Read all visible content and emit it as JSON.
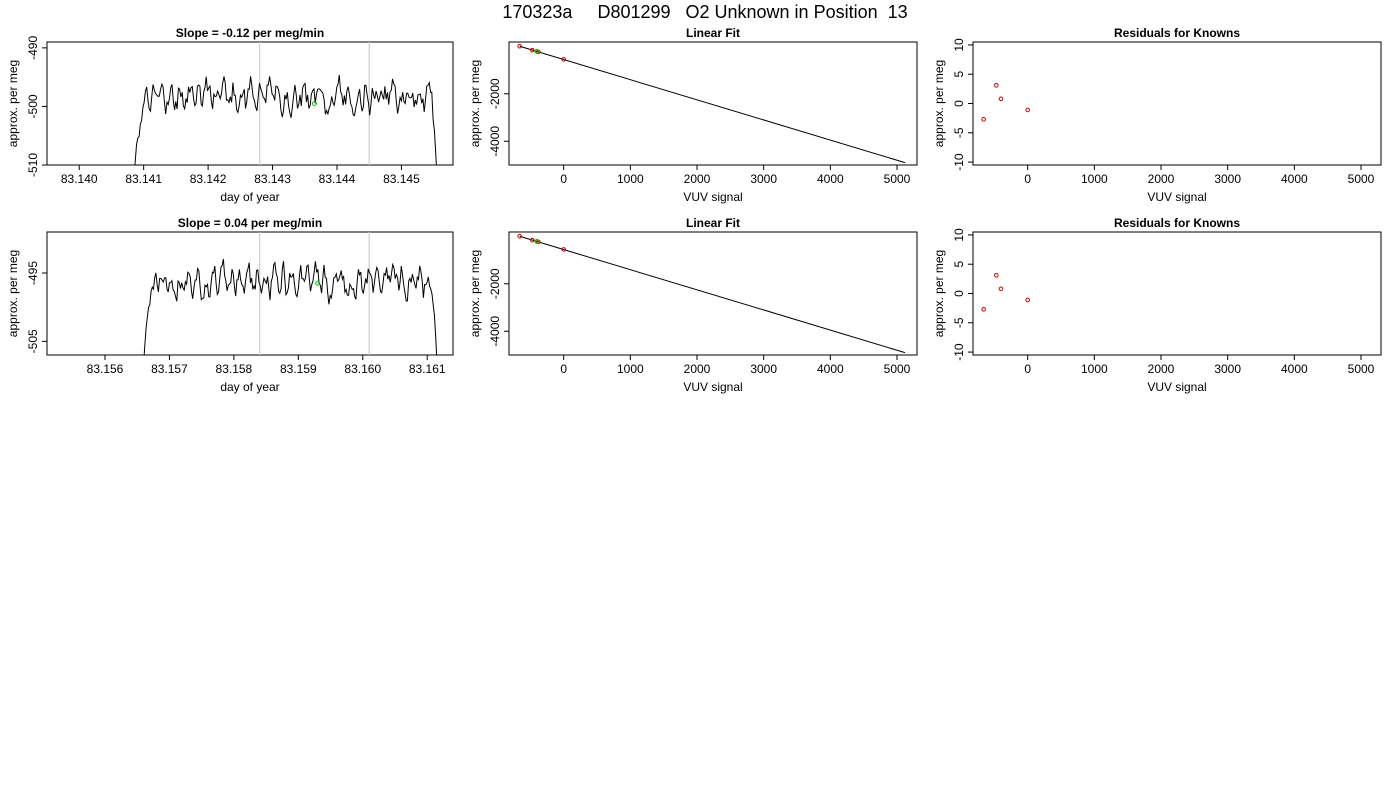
{
  "figure": {
    "main_title": "170323a     D801299   O2 Unknown in Position  13"
  },
  "chart_data": [
    {
      "id": "trace1",
      "type": "line",
      "title": "Slope =  -0.12  per meg/min",
      "xlabel": "day of year",
      "ylabel": "approx. per meg",
      "xlim": [
        83.1395,
        83.1458
      ],
      "ylim": [
        -510,
        -489
      ],
      "xticks": [
        83.14,
        83.141,
        83.142,
        83.143,
        83.144,
        83.145
      ],
      "xtick_labels": [
        "83.140",
        "83.141",
        "83.142",
        "83.143",
        "83.144",
        "83.145"
      ],
      "yticks": [
        -510,
        -500,
        -490
      ],
      "ytick_labels": [
        "-510",
        "-500",
        "-490"
      ],
      "vlines": [
        83.1428,
        83.1445
      ],
      "highlight_point": {
        "x": 83.14365,
        "y": -499.5,
        "color": "#00cc00"
      },
      "x_start": 83.14085,
      "x_end": 83.14555,
      "n_points": 240,
      "y_mean": -498,
      "noise": 2.2,
      "seed": 17,
      "start_y": -512,
      "end_y": -512,
      "line_color": "#000000",
      "vline_color": "#cccccc"
    },
    {
      "id": "fit1",
      "type": "scatter",
      "title": "Linear Fit",
      "xlabel": "VUV signal",
      "ylabel": "approx. per meg",
      "xlim": [
        -820,
        5300
      ],
      "ylim": [
        -5000,
        180
      ],
      "xticks": [
        0,
        1000,
        2000,
        3000,
        4000,
        5000
      ],
      "xtick_labels": [
        "0",
        "1000",
        "2000",
        "3000",
        "4000",
        "5000"
      ],
      "yticks": [
        -4000,
        -2000
      ],
      "ytick_labels": [
        "-4000",
        "-2000"
      ],
      "fit_line": {
        "x": [
          -660,
          5120
        ],
        "y": [
          0,
          -4900
        ]
      },
      "known_points": {
        "x": [
          -660,
          -470,
          -380,
          0
        ],
        "y": [
          3,
          -163,
          -237,
          -552
        ],
        "color": "#cc0000"
      },
      "unknown_points": {
        "x": [
          -400
        ],
        "y": [
          -218
        ],
        "color": "#00cc00"
      }
    },
    {
      "id": "resid1",
      "type": "scatter",
      "title": "Residuals for Knowns",
      "xlabel": "VUV signal",
      "ylabel": "approx. per meg",
      "xlim": [
        -820,
        5300
      ],
      "ylim": [
        -10.5,
        10.5
      ],
      "xticks": [
        0,
        1000,
        2000,
        3000,
        4000,
        5000
      ],
      "xtick_labels": [
        "0",
        "1000",
        "2000",
        "3000",
        "4000",
        "5000"
      ],
      "yticks": [
        -10,
        -5,
        0,
        5,
        10
      ],
      "ytick_labels": [
        "-10",
        "-5",
        "0",
        "5",
        "10"
      ],
      "points": {
        "x": [
          -660,
          -470,
          -400,
          0
        ],
        "y": [
          -2.7,
          3.1,
          0.8,
          -1.1
        ],
        "color": "#cc0000"
      }
    },
    {
      "id": "trace2",
      "type": "line",
      "title": "Slope =  0.04  per meg/min",
      "xlabel": "day of year",
      "ylabel": "approx. per meg",
      "xlim": [
        83.1551,
        83.1614
      ],
      "ylim": [
        -507,
        -489
      ],
      "xticks": [
        83.156,
        83.157,
        83.158,
        83.159,
        83.16,
        83.161
      ],
      "xtick_labels": [
        "83.156",
        "83.157",
        "83.158",
        "83.159",
        "83.160",
        "83.161"
      ],
      "yticks": [
        -505,
        -495
      ],
      "ytick_labels": [
        "-505",
        "-495"
      ],
      "vlines": [
        83.1584,
        83.1601
      ],
      "highlight_point": {
        "x": 83.1593,
        "y": -496.5,
        "color": "#00cc00"
      },
      "x_start": 83.1566,
      "x_end": 83.16115,
      "n_points": 240,
      "y_mean": -496.2,
      "noise": 1.8,
      "seed": 41,
      "start_y": -508,
      "end_y": -508,
      "line_color": "#000000",
      "vline_color": "#cccccc"
    },
    {
      "id": "fit2",
      "type": "scatter",
      "title": "Linear Fit",
      "xlabel": "VUV signal",
      "ylabel": "approx. per meg",
      "xlim": [
        -820,
        5300
      ],
      "ylim": [
        -5000,
        180
      ],
      "xticks": [
        0,
        1000,
        2000,
        3000,
        4000,
        5000
      ],
      "xtick_labels": [
        "0",
        "1000",
        "2000",
        "3000",
        "4000",
        "5000"
      ],
      "yticks": [
        -4000,
        -2000
      ],
      "ytick_labels": [
        "-4000",
        "-2000"
      ],
      "fit_line": {
        "x": [
          -660,
          5120
        ],
        "y": [
          0,
          -4900
        ]
      },
      "known_points": {
        "x": [
          -660,
          -470,
          -380,
          0
        ],
        "y": [
          3,
          -163,
          -237,
          -552
        ],
        "color": "#cc0000"
      },
      "unknown_points": {
        "x": [
          -400
        ],
        "y": [
          -218
        ],
        "color": "#00cc00"
      }
    },
    {
      "id": "resid2",
      "type": "scatter",
      "title": "Residuals for Knowns",
      "xlabel": "VUV signal",
      "ylabel": "approx. per meg",
      "xlim": [
        -820,
        5300
      ],
      "ylim": [
        -10.5,
        10.5
      ],
      "xticks": [
        0,
        1000,
        2000,
        3000,
        4000,
        5000
      ],
      "xtick_labels": [
        "0",
        "1000",
        "2000",
        "3000",
        "4000",
        "5000"
      ],
      "yticks": [
        -10,
        -5,
        0,
        5,
        10
      ],
      "ytick_labels": [
        "-10",
        "-5",
        "0",
        "5",
        "10"
      ],
      "points": {
        "x": [
          -660,
          -470,
          -400,
          0
        ],
        "y": [
          -2.7,
          3.1,
          0.8,
          -1.1
        ],
        "color": "#cc0000"
      }
    }
  ]
}
